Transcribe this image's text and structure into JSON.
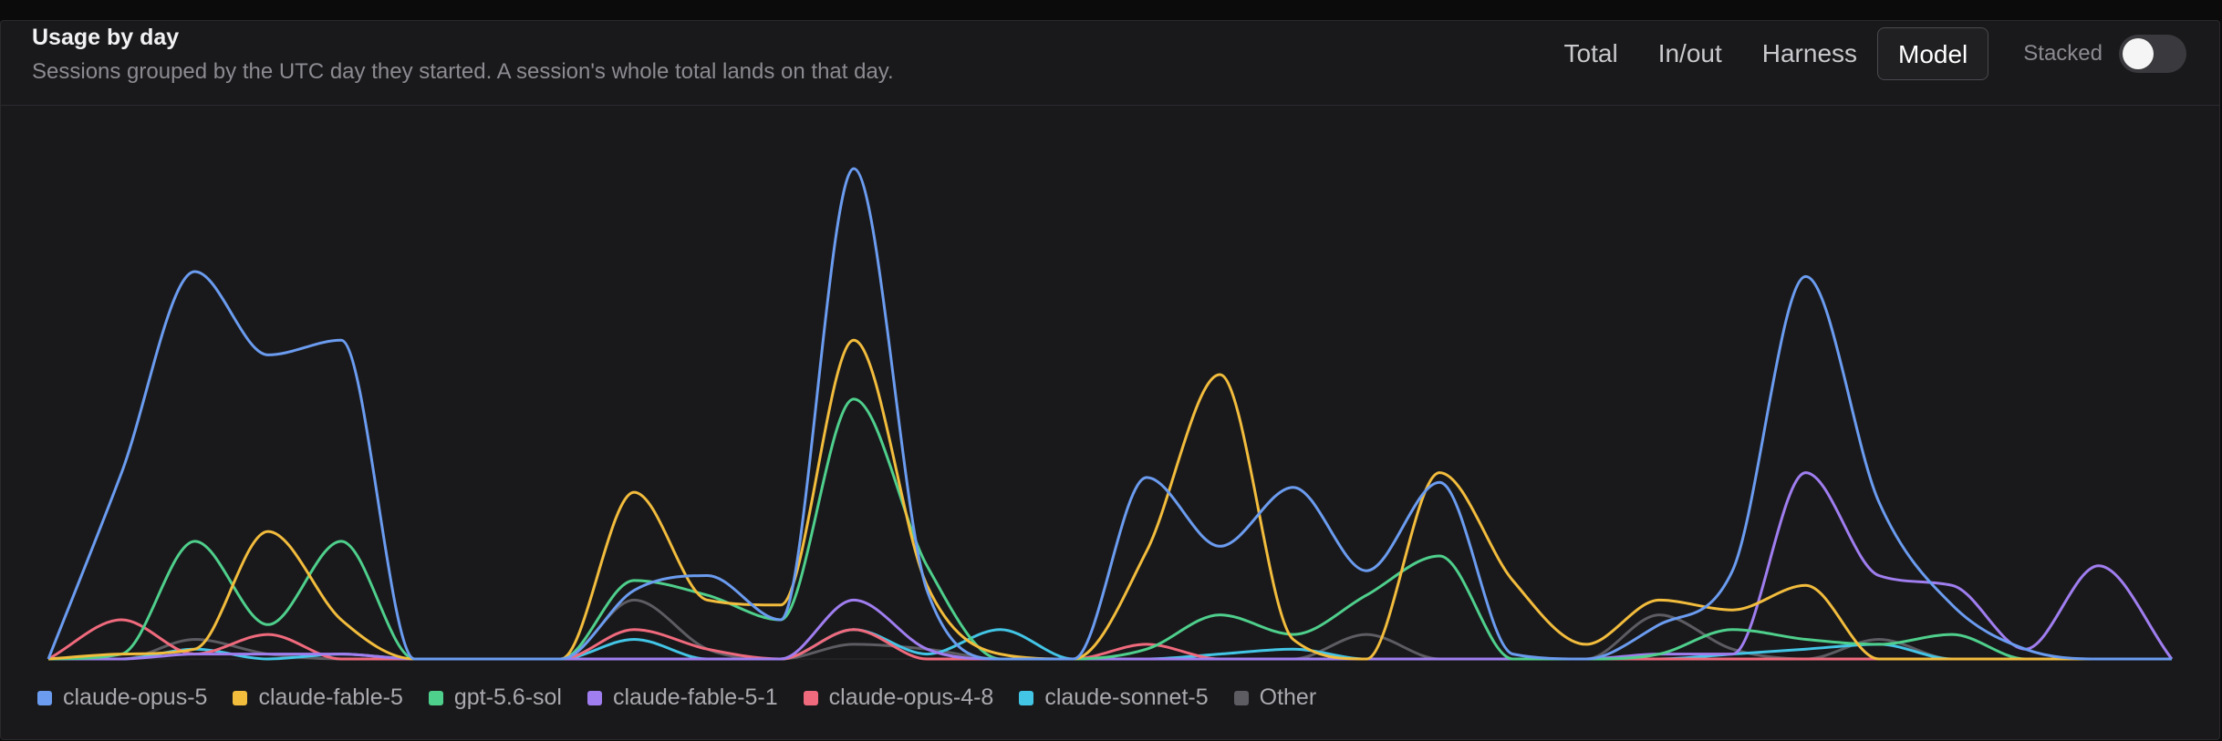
{
  "header": {
    "title": "Usage by day",
    "subtitle": "Sessions grouped by the UTC day they started. A session's whole total lands on that day."
  },
  "tabs": [
    {
      "label": "Total",
      "active": false
    },
    {
      "label": "In/out",
      "active": false
    },
    {
      "label": "Harness",
      "active": false
    },
    {
      "label": "Model",
      "active": true
    }
  ],
  "toggle": {
    "label": "Stacked",
    "on": false
  },
  "chart_data": {
    "type": "line",
    "x": [
      0,
      1,
      2,
      3,
      4,
      5,
      6,
      7,
      8,
      9,
      10,
      11,
      12,
      13,
      14,
      15,
      16,
      17,
      18,
      19,
      20,
      21,
      22,
      23,
      24,
      25,
      26,
      27,
      28,
      29
    ],
    "ylim": [
      0,
      100
    ],
    "grid": false,
    "legend": "bottom-left",
    "series": [
      {
        "name": "claude-opus-5",
        "color": "#6b9cf0",
        "values": [
          0,
          38,
          79,
          62,
          65,
          0,
          0,
          0,
          14,
          17,
          8,
          100,
          14,
          0,
          0,
          37,
          23,
          35,
          18,
          36,
          1,
          0,
          7,
          18,
          78,
          32,
          11,
          2,
          0,
          0
        ]
      },
      {
        "name": "claude-fable-5",
        "color": "#f2bc3d",
        "values": [
          0,
          1,
          2,
          26,
          8,
          0,
          0,
          0,
          34,
          12,
          11,
          65,
          15,
          1,
          0,
          22,
          58,
          4,
          0,
          38,
          16,
          3,
          12,
          10,
          15,
          0,
          0,
          0,
          0,
          0
        ]
      },
      {
        "name": "gpt-5.6-sol",
        "color": "#4fcf8c",
        "values": [
          0,
          1,
          24,
          7,
          24,
          0,
          0,
          0,
          16,
          13,
          8,
          53,
          19,
          0,
          0,
          2,
          9,
          5,
          13,
          21,
          0,
          0,
          1,
          6,
          4,
          3,
          5,
          0,
          0,
          0
        ]
      },
      {
        "name": "claude-fable-5-1",
        "color": "#a07ef0",
        "values": [
          0,
          0,
          1,
          1,
          1,
          0,
          0,
          0,
          0,
          0,
          0,
          12,
          2,
          0,
          0,
          0,
          0,
          0,
          0,
          0,
          0,
          0,
          1,
          1,
          38,
          17,
          15,
          2,
          19,
          0
        ]
      },
      {
        "name": "claude-opus-4-8",
        "color": "#f06a7d",
        "values": [
          0,
          8,
          1,
          5,
          0,
          0,
          0,
          0,
          6,
          2,
          0,
          6,
          0,
          0,
          0,
          3,
          0,
          0,
          0,
          0,
          0,
          0,
          0,
          0,
          0,
          0,
          0,
          0,
          0,
          0
        ]
      },
      {
        "name": "claude-sonnet-5",
        "color": "#43c5e6",
        "values": [
          0,
          0,
          2,
          0,
          1,
          0,
          0,
          0,
          4,
          0,
          0,
          6,
          1,
          6,
          0,
          0,
          1,
          2,
          0,
          0,
          0,
          0,
          0,
          1,
          2,
          3,
          0,
          0,
          0,
          0
        ]
      },
      {
        "name": "Other",
        "color": "#5c5c62",
        "values": [
          0,
          0,
          4,
          1,
          0,
          0,
          0,
          0,
          12,
          2,
          0,
          3,
          2,
          0,
          0,
          0,
          0,
          0,
          5,
          0,
          0,
          0,
          9,
          2,
          0,
          4,
          0,
          0,
          0,
          0
        ]
      }
    ]
  }
}
